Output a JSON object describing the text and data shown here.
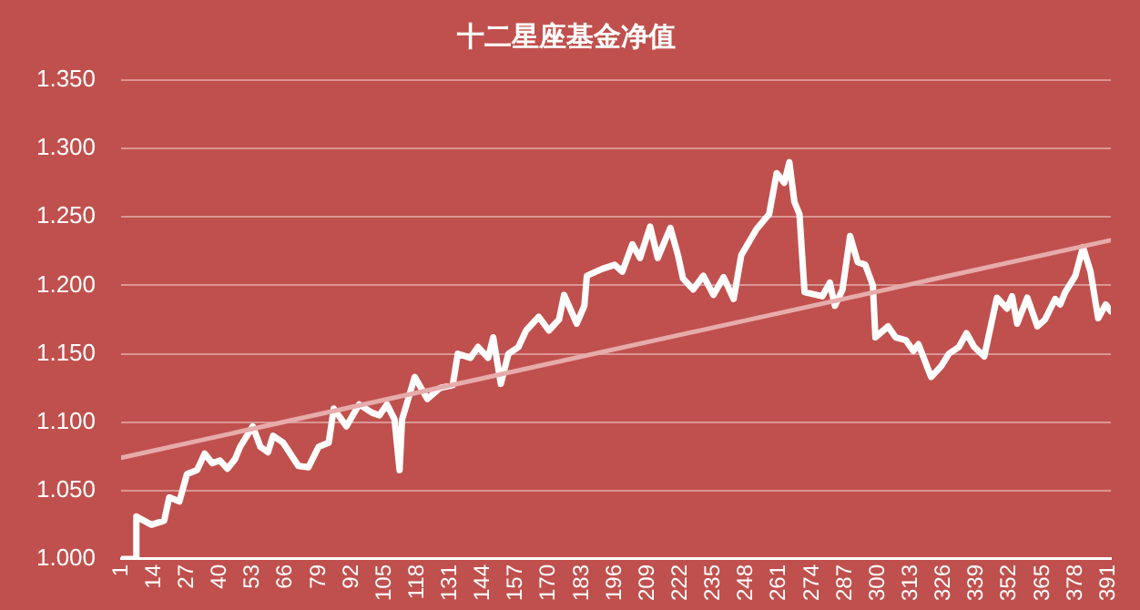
{
  "chart_data": {
    "type": "line",
    "title": "十二星座基金净值",
    "xlim": [
      1,
      392
    ],
    "xticks": [
      1,
      14,
      27,
      40,
      53,
      66,
      79,
      92,
      105,
      118,
      131,
      144,
      157,
      170,
      183,
      196,
      209,
      222,
      235,
      248,
      261,
      274,
      287,
      300,
      313,
      326,
      339,
      352,
      365,
      378,
      391
    ],
    "ylim": [
      1.0,
      1.35
    ],
    "yticks": [
      {
        "value": 1.0,
        "label": "1.000"
      },
      {
        "value": 1.05,
        "label": "1.050"
      },
      {
        "value": 1.1,
        "label": "1.100"
      },
      {
        "value": 1.15,
        "label": "1.150"
      },
      {
        "value": 1.2,
        "label": "1.200"
      },
      {
        "value": 1.25,
        "label": "1.250"
      },
      {
        "value": 1.3,
        "label": "1.300"
      },
      {
        "value": 1.35,
        "label": "1.350"
      }
    ],
    "grid": "y",
    "legend": false,
    "marker": "none",
    "line_style": "solid",
    "series": [
      {
        "color": "#ffffff",
        "x": [
          1,
          7,
          7,
          13,
          18,
          20,
          24,
          27,
          31,
          34,
          37,
          40,
          43,
          46,
          48,
          53,
          56,
          59,
          61,
          65,
          71,
          75,
          79,
          83,
          85,
          90,
          95,
          100,
          103,
          106,
          109,
          111,
          112,
          117,
          122,
          127,
          132,
          134,
          139,
          142,
          146,
          148,
          151,
          154,
          158,
          161,
          166,
          170,
          174,
          176,
          181,
          184,
          185,
          191,
          196,
          199,
          203,
          206,
          210,
          213,
          218,
          221,
          223,
          227,
          231,
          235,
          239,
          243,
          246,
          252,
          257,
          260,
          263,
          265,
          267,
          269,
          271,
          278,
          281,
          283,
          286,
          289,
          292,
          295,
          298,
          299,
          304,
          307,
          311,
          314,
          316,
          321,
          325,
          328,
          332,
          335,
          338,
          342,
          347,
          351,
          353,
          355,
          359,
          363,
          366,
          370,
          372,
          374,
          378,
          381,
          384,
          387,
          390,
          392
        ],
        "values": [
          1.0,
          1.0,
          1.031,
          1.025,
          1.028,
          1.045,
          1.042,
          1.062,
          1.065,
          1.077,
          1.07,
          1.072,
          1.066,
          1.073,
          1.082,
          1.097,
          1.082,
          1.078,
          1.09,
          1.085,
          1.068,
          1.067,
          1.082,
          1.085,
          1.11,
          1.097,
          1.113,
          1.107,
          1.105,
          1.113,
          1.102,
          1.065,
          1.102,
          1.133,
          1.117,
          1.125,
          1.127,
          1.15,
          1.147,
          1.155,
          1.147,
          1.162,
          1.128,
          1.15,
          1.155,
          1.167,
          1.177,
          1.167,
          1.175,
          1.193,
          1.172,
          1.185,
          1.207,
          1.212,
          1.215,
          1.21,
          1.23,
          1.22,
          1.243,
          1.22,
          1.242,
          1.222,
          1.205,
          1.197,
          1.207,
          1.193,
          1.206,
          1.19,
          1.222,
          1.241,
          1.252,
          1.282,
          1.275,
          1.29,
          1.261,
          1.252,
          1.195,
          1.192,
          1.202,
          1.185,
          1.197,
          1.236,
          1.217,
          1.215,
          1.2,
          1.162,
          1.17,
          1.162,
          1.16,
          1.152,
          1.157,
          1.133,
          1.141,
          1.15,
          1.155,
          1.165,
          1.155,
          1.148,
          1.191,
          1.183,
          1.192,
          1.172,
          1.191,
          1.17,
          1.175,
          1.19,
          1.186,
          1.195,
          1.207,
          1.228,
          1.21,
          1.176,
          1.186,
          1.181
        ]
      },
      {
        "type": "line",
        "color": "#e6acab",
        "x": [
          1,
          392
        ],
        "values": [
          1.074,
          1.233
        ]
      }
    ]
  }
}
